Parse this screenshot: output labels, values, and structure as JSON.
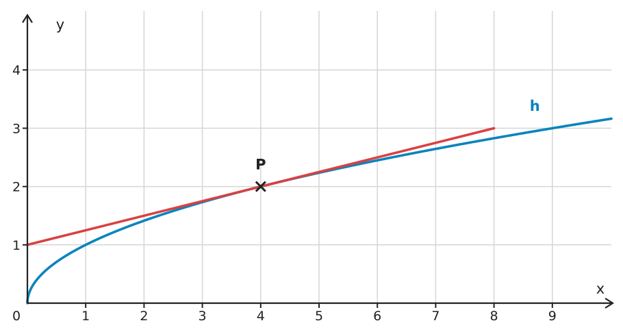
{
  "chart_data": {
    "type": "line",
    "title": "",
    "xlabel": "x",
    "ylabel": "y",
    "origin_label": "0",
    "xlim": [
      0,
      10
    ],
    "ylim": [
      0,
      5
    ],
    "x_ticks": [
      1,
      2,
      3,
      4,
      5,
      6,
      7,
      8,
      9
    ],
    "y_ticks": [
      1,
      2,
      3,
      4
    ],
    "grid": true,
    "series": [
      {
        "name": "h",
        "function": "sqrt(x)",
        "color": "#0a84bd",
        "x": [
          0,
          0.25,
          1,
          2,
          3,
          4,
          5,
          6,
          7,
          8,
          9,
          10
        ],
        "y": [
          0,
          0.5,
          1,
          1.414,
          1.732,
          2,
          2.236,
          2.449,
          2.646,
          2.828,
          3,
          3.162
        ]
      },
      {
        "name": "",
        "function": "x/4 + 1",
        "color": "#d94141",
        "x": [
          0,
          8
        ],
        "y": [
          1,
          3
        ]
      }
    ],
    "points": [
      {
        "label": "P",
        "x": 4,
        "y": 2,
        "marker": "cross",
        "color": "#222222"
      }
    ]
  }
}
